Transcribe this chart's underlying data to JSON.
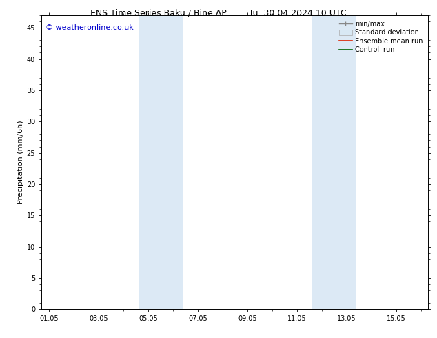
{
  "title_left": "ENS Time Series Baku / Bine AP",
  "title_right": "Tu. 30.04.2024 10 UTC",
  "ylabel": "Precipitation (mm/6h)",
  "watermark": "© weatheronline.co.uk",
  "watermark_color": "#0000cc",
  "ylim": [
    0,
    47
  ],
  "yticks": [
    0,
    5,
    10,
    15,
    20,
    25,
    30,
    35,
    40,
    45
  ],
  "xtick_labels": [
    "01.05",
    "03.05",
    "05.05",
    "07.05",
    "09.05",
    "11.05",
    "13.05",
    "15.05"
  ],
  "xtick_positions": [
    0,
    2,
    4,
    6,
    8,
    10,
    12,
    14
  ],
  "xlim": [
    -0.3,
    15.3
  ],
  "shaded_regions": [
    {
      "xmin": 3.6,
      "xmax": 5.4,
      "color": "#dce9f5"
    },
    {
      "xmin": 10.6,
      "xmax": 12.4,
      "color": "#dce9f5"
    }
  ],
  "bg_color": "#ffffff",
  "plot_bg_color": "#ffffff",
  "font_size_title": 9,
  "font_size_labels": 8,
  "font_size_ticks": 7,
  "font_size_legend": 7,
  "font_size_watermark": 8
}
